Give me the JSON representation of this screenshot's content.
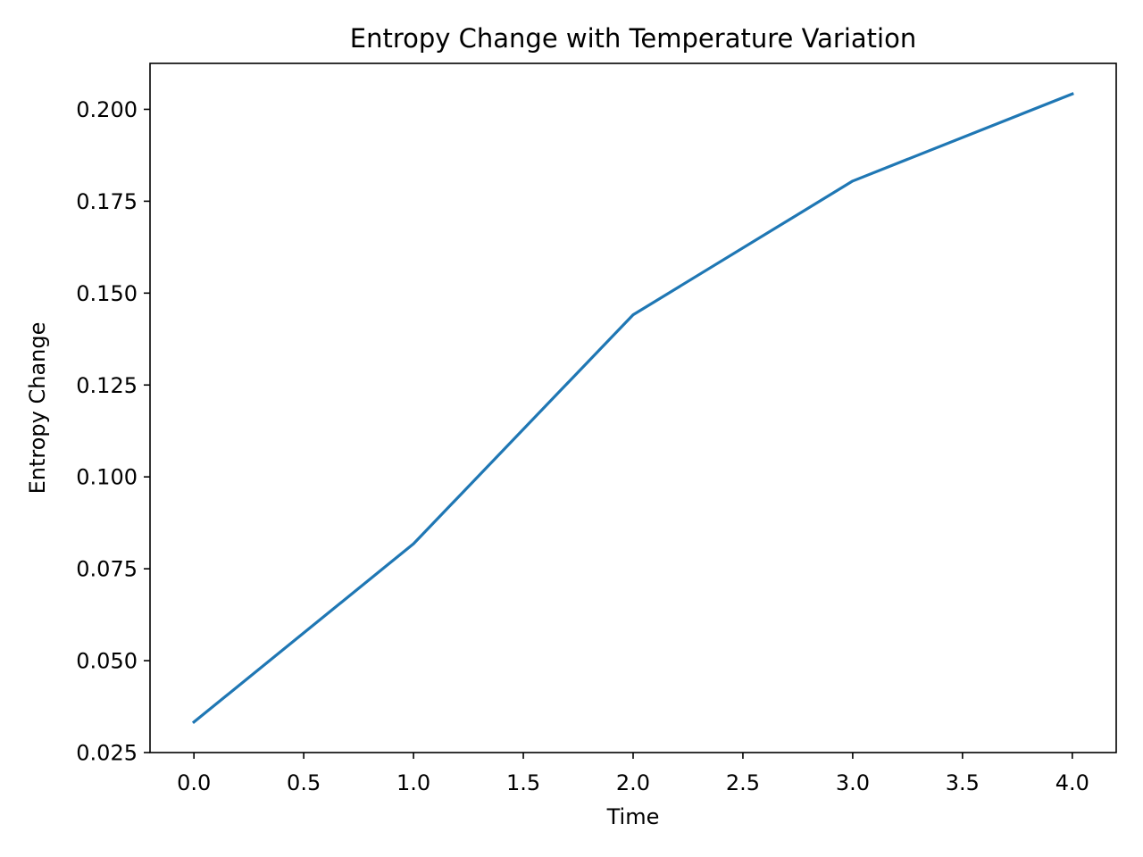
{
  "chart_data": {
    "type": "line",
    "title": "Entropy Change with Temperature Variation",
    "xlabel": "Time",
    "ylabel": "Entropy Change",
    "x": [
      0,
      1,
      2,
      3,
      4
    ],
    "series": [
      {
        "values": [
          0.0333,
          0.0818,
          0.1441,
          0.1805,
          0.2042
        ],
        "color": "#1f77b4"
      }
    ],
    "xlim": [
      -0.2,
      4.2
    ],
    "ylim": [
      0.025,
      0.2125
    ],
    "xticks": [
      0.0,
      0.5,
      1.0,
      1.5,
      2.0,
      2.5,
      3.0,
      3.5,
      4.0
    ],
    "xtick_labels": [
      "0.0",
      "0.5",
      "1.0",
      "1.5",
      "2.0",
      "2.5",
      "3.0",
      "3.5",
      "4.0"
    ],
    "yticks": [
      0.025,
      0.05,
      0.075,
      0.1,
      0.125,
      0.15,
      0.175,
      0.2
    ],
    "ytick_labels": [
      "0.025",
      "0.050",
      "0.075",
      "0.100",
      "0.125",
      "0.150",
      "0.175",
      "0.200"
    ],
    "grid": false,
    "legend": "none"
  }
}
